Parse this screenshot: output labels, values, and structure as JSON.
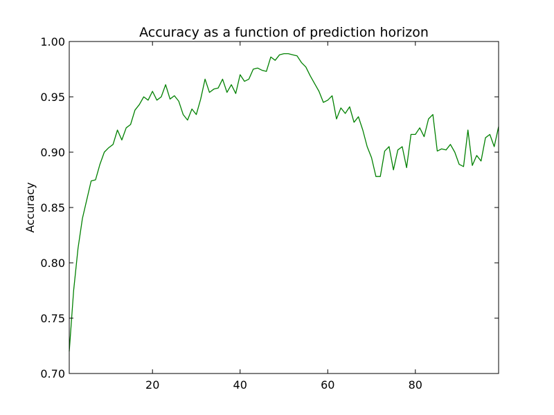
{
  "chart_data": {
    "type": "line",
    "title": "Accuracy as a function of prediction horizon",
    "xlabel": "",
    "ylabel": "Accuracy",
    "xlim": [
      1,
      99
    ],
    "ylim": [
      0.7,
      1.0
    ],
    "xticks": [
      20,
      40,
      60,
      80
    ],
    "xtick_labels": [
      "20",
      "40",
      "60",
      "80"
    ],
    "yticks": [
      0.7,
      0.75,
      0.8,
      0.85,
      0.9,
      0.95,
      1.0
    ],
    "ytick_labels": [
      "0.70",
      "0.75",
      "0.80",
      "0.85",
      "0.90",
      "0.95",
      "1.00"
    ],
    "grid": false,
    "series": [
      {
        "color": "#008000",
        "x": [
          1,
          2,
          3,
          4,
          5,
          6,
          7,
          8,
          9,
          10,
          11,
          12,
          13,
          14,
          15,
          16,
          17,
          18,
          19,
          20,
          21,
          22,
          23,
          24,
          25,
          26,
          27,
          28,
          29,
          30,
          31,
          32,
          33,
          34,
          35,
          36,
          37,
          38,
          39,
          40,
          41,
          42,
          43,
          44,
          45,
          46,
          47,
          48,
          49,
          50,
          51,
          52,
          53,
          54,
          55,
          56,
          57,
          58,
          59,
          60,
          61,
          62,
          63,
          64,
          65,
          66,
          67,
          68,
          69,
          70,
          71,
          72,
          73,
          74,
          75,
          76,
          77,
          78,
          79,
          80,
          81,
          82,
          83,
          84,
          85,
          86,
          87,
          88,
          89,
          90,
          91,
          92,
          93,
          94,
          95,
          96,
          97,
          98,
          99
        ],
        "y": [
          0.72,
          0.775,
          0.813,
          0.84,
          0.857,
          0.874,
          0.875,
          0.889,
          0.9,
          0.904,
          0.907,
          0.92,
          0.911,
          0.922,
          0.925,
          0.938,
          0.943,
          0.95,
          0.947,
          0.955,
          0.947,
          0.95,
          0.961,
          0.948,
          0.951,
          0.946,
          0.934,
          0.929,
          0.939,
          0.934,
          0.948,
          0.966,
          0.954,
          0.957,
          0.958,
          0.966,
          0.954,
          0.961,
          0.953,
          0.97,
          0.964,
          0.966,
          0.975,
          0.976,
          0.974,
          0.973,
          0.986,
          0.983,
          0.988,
          0.989,
          0.989,
          0.988,
          0.987,
          0.981,
          0.977,
          0.969,
          0.962,
          0.955,
          0.945,
          0.947,
          0.951,
          0.93,
          0.94,
          0.935,
          0.941,
          0.927,
          0.932,
          0.92,
          0.905,
          0.895,
          0.878,
          0.878,
          0.901,
          0.905,
          0.884,
          0.902,
          0.905,
          0.886,
          0.916,
          0.916,
          0.922,
          0.914,
          0.93,
          0.934,
          0.901,
          0.903,
          0.902,
          0.907,
          0.9,
          0.889,
          0.887,
          0.92,
          0.888,
          0.897,
          0.892,
          0.913,
          0.916,
          0.905,
          0.923
        ]
      }
    ]
  }
}
